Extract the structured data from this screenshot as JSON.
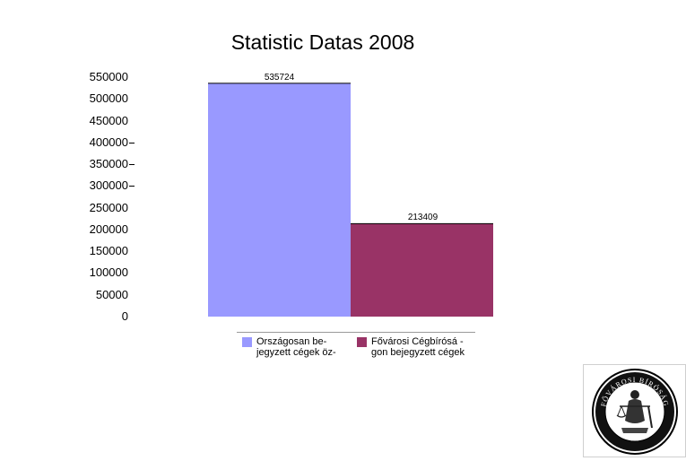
{
  "chart_data": {
    "type": "bar",
    "title": "Statistic Datas 2008",
    "xlabel": "",
    "ylabel": "",
    "ylim": [
      0,
      550000
    ],
    "yticks": [
      {
        "label": "550000",
        "dash": false
      },
      {
        "label": "500000",
        "dash": false
      },
      {
        "label": "450000",
        "dash": false
      },
      {
        "label": "400000",
        "dash": true
      },
      {
        "label": "350000",
        "dash": true
      },
      {
        "label": "300000",
        "dash": true
      },
      {
        "label": "250000",
        "dash": false
      },
      {
        "label": "200000",
        "dash": false
      },
      {
        "label": "150000",
        "dash": false
      },
      {
        "label": "100000",
        "dash": false
      },
      {
        "label": "50000",
        "dash": false
      },
      {
        "label": "0",
        "dash": false
      }
    ],
    "grid": false,
    "legend_position": "bottom",
    "series": [
      {
        "name": "Országosan be-\njegyzett cégek öz-",
        "value": 535724,
        "label": "535724",
        "color": "#9999ff"
      },
      {
        "name": "Fővárosi Cégbírósá -\ngon bejegyzett cégek",
        "value": 213409,
        "label": "213409",
        "color": "#993366"
      }
    ]
  },
  "logo": {
    "top_text": "FŐVÁROSI BÍRÓSÁG",
    "bottom_text": "BUDAPEST"
  }
}
